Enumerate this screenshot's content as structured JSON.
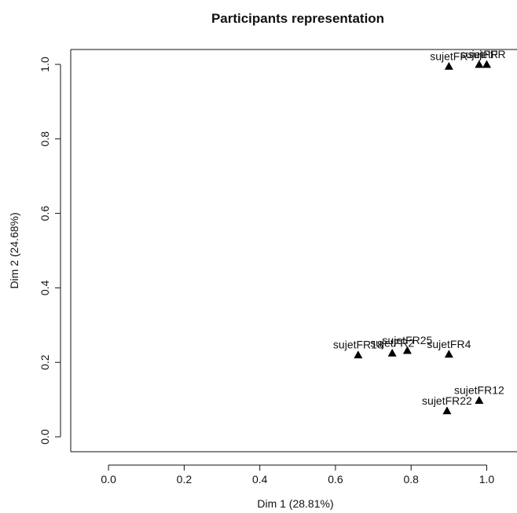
{
  "chart_data": {
    "type": "scatter",
    "title": "Participants representation",
    "xlabel": "Dim 1 (28.81%)",
    "ylabel": "Dim 2 (24.68%)",
    "xlim": [
      -0.1,
      1.08
    ],
    "ylim": [
      -0.04,
      1.04
    ],
    "xticks": [
      0.0,
      0.2,
      0.4,
      0.6,
      0.8,
      1.0
    ],
    "yticks": [
      0.0,
      0.2,
      0.4,
      0.6,
      0.8,
      1.0
    ],
    "xtick_labels": [
      "0.0",
      "0.2",
      "0.4",
      "0.6",
      "0.8",
      "1.0"
    ],
    "ytick_labels": [
      "0.0",
      "0.2",
      "0.4",
      "0.6",
      "0.8",
      "1.0"
    ],
    "grid": false,
    "marker": "triangle",
    "points": [
      {
        "x": 0.9,
        "y": 0.995,
        "label": "sujetFR"
      },
      {
        "x": 0.98,
        "y": 1.0,
        "label": "sujetFR"
      },
      {
        "x": 1.0,
        "y": 1.0,
        "label": "sujetFR"
      },
      {
        "x": 0.66,
        "y": 0.22,
        "label": "sujetFR18"
      },
      {
        "x": 0.75,
        "y": 0.225,
        "label": "sujetFR2"
      },
      {
        "x": 0.79,
        "y": 0.232,
        "label": "sujetFR25"
      },
      {
        "x": 0.9,
        "y": 0.222,
        "label": "sujetFR4"
      },
      {
        "x": 0.98,
        "y": 0.098,
        "label": "sujetFR12"
      },
      {
        "x": 0.895,
        "y": 0.07,
        "label": "sujetFR22"
      }
    ]
  }
}
